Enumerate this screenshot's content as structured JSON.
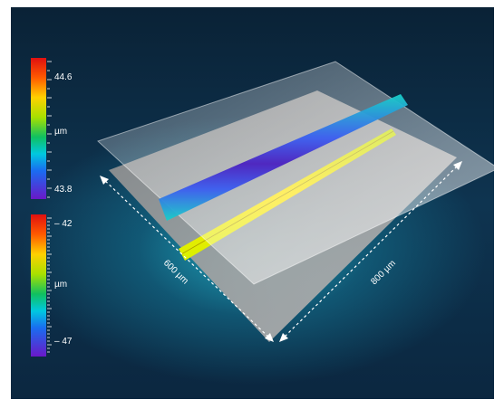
{
  "colorbar_top": {
    "max_label": "44.6",
    "unit_label": "µm",
    "min_label": "43.8"
  },
  "colorbar_bottom": {
    "max_label": "– 42",
    "unit_label": "µm",
    "min_label": "– 47"
  },
  "dimensions": {
    "width_label": "600 µm",
    "length_label": "800 µm"
  }
}
